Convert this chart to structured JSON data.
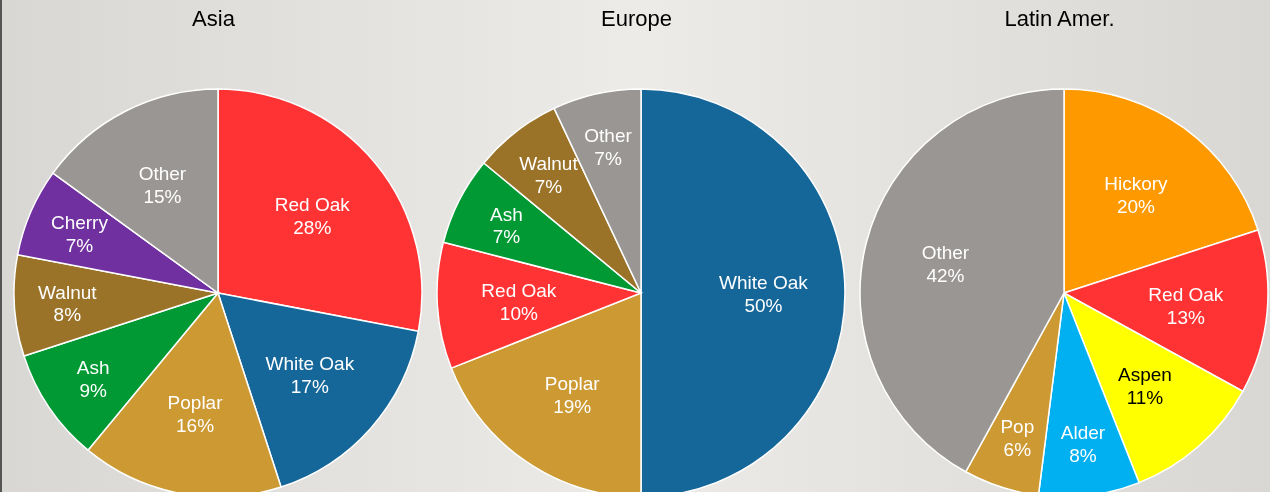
{
  "chart_data": [
    {
      "type": "pie",
      "title": "Asia",
      "categories": [
        "Red Oak",
        "White Oak",
        "Poplar",
        "Ash",
        "Walnut",
        "Cherry",
        "Other"
      ],
      "values": [
        28,
        17,
        16,
        9,
        8,
        7,
        15
      ],
      "value_labels": [
        "28%",
        "17%",
        "16%",
        "9%",
        "8%",
        "7%",
        "15%"
      ],
      "colors": [
        "#ff3333",
        "#156699",
        "#cc9933",
        "#009933",
        "#9a7329",
        "#7030a0",
        "#999693"
      ],
      "legend": false
    },
    {
      "type": "pie",
      "title": "Europe",
      "categories": [
        "White Oak",
        "Poplar",
        "Red Oak",
        "Ash",
        "Walnut",
        "Other"
      ],
      "values": [
        50,
        19,
        10,
        7,
        7,
        7
      ],
      "value_labels": [
        "50%",
        "19%",
        "10%",
        "7%",
        "7%",
        "7%"
      ],
      "colors": [
        "#156699",
        "#cc9933",
        "#ff3333",
        "#009933",
        "#9a7329",
        "#999693"
      ],
      "legend": false
    },
    {
      "type": "pie",
      "title": "Latin Amer.",
      "categories": [
        "Hickory",
        "Red Oak",
        "Aspen",
        "Alder",
        "Pop",
        "Other"
      ],
      "values": [
        20,
        13,
        11,
        8,
        6,
        42
      ],
      "value_labels": [
        "20%",
        "13%",
        "11%",
        "8%",
        "6%",
        "42%"
      ],
      "colors": [
        "#ff9900",
        "#ff3333",
        "#ffff00",
        "#00b0f0",
        "#cc9933",
        "#999693"
      ],
      "legend": false
    }
  ]
}
